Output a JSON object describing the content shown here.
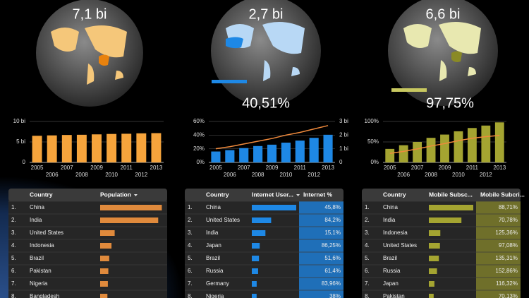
{
  "scorecards": [
    {
      "value": "7,1 bi"
    },
    {
      "value": "2,7 bi",
      "percent": "40,51%"
    },
    {
      "value": "6,6 bi",
      "percent": "97,75%"
    }
  ],
  "chart_data": [
    {
      "type": "bar",
      "categories": [
        "2005",
        "2006",
        "2007",
        "2008",
        "2009",
        "2010",
        "2011",
        "2012",
        "2013"
      ],
      "series": [
        {
          "kind": "bar",
          "color": "#f6a43c",
          "values": [
            6.5,
            6.6,
            6.7,
            6.75,
            6.85,
            6.95,
            7.0,
            7.1,
            7.15
          ]
        }
      ],
      "ylim": [
        0,
        10
      ],
      "yticks": [
        0,
        {
          "value": 5,
          "label": "5 bi"
        },
        {
          "value": 10,
          "label": "10 bi"
        }
      ],
      "grid": true
    },
    {
      "type": "bar",
      "categories": [
        "2005",
        "2006",
        "2007",
        "2008",
        "2009",
        "2010",
        "2011",
        "2012",
        "2013"
      ],
      "series": [
        {
          "kind": "bar",
          "color": "#1e88e5",
          "values": [
            16,
            18,
            21,
            24,
            26,
            29,
            32,
            36,
            40.51
          ]
        },
        {
          "kind": "line",
          "axis": "y2",
          "color": "#f08a3c",
          "values": [
            1.0,
            1.15,
            1.35,
            1.55,
            1.75,
            2.0,
            2.2,
            2.45,
            2.7
          ]
        }
      ],
      "ylim": [
        0,
        60
      ],
      "yticks": [
        {
          "value": 0,
          "label": "0%"
        },
        {
          "value": 20,
          "label": "20%"
        },
        {
          "value": 40,
          "label": "40%"
        },
        {
          "value": 60,
          "label": "60%"
        }
      ],
      "y2lim": [
        0,
        3
      ],
      "y2ticks": [
        0,
        {
          "value": 1,
          "label": "1 bi"
        },
        {
          "value": 2,
          "label": "2 bi"
        },
        {
          "value": 3,
          "label": "3 bi"
        }
      ],
      "grid": true
    },
    {
      "type": "bar",
      "categories": [
        "2005",
        "2006",
        "2007",
        "2008",
        "2009",
        "2010",
        "2011",
        "2012",
        "2013"
      ],
      "series": [
        {
          "kind": "bar",
          "color": "#a4a431",
          "values": [
            33,
            42,
            50,
            60,
            68,
            76,
            84,
            90,
            97.75
          ]
        },
        {
          "kind": "line",
          "axis": "y2",
          "color": "#f08a3c",
          "values": [
            2.2,
            2.7,
            3.3,
            4.0,
            4.6,
            5.3,
            5.9,
            6.3,
            6.6
          ]
        }
      ],
      "ylim": [
        0,
        100
      ],
      "yticks": [
        {
          "value": 0,
          "label": "0%"
        },
        {
          "value": 50,
          "label": "50%"
        },
        {
          "value": 100,
          "label": "100%"
        }
      ],
      "y2lim": [
        0,
        10
      ],
      "grid": true
    }
  ],
  "tables": [
    {
      "columns": [
        "Country",
        "Population"
      ],
      "sorted_column": 1,
      "bar_color": "#e08a3c",
      "bar_lim": [
        0,
        1.4
      ],
      "rows": [
        {
          "rank": "1.",
          "country": "China",
          "bar": 1.36
        },
        {
          "rank": "2.",
          "country": "India",
          "bar": 1.28
        },
        {
          "rank": "3.",
          "country": "United States",
          "bar": 0.32
        },
        {
          "rank": "4.",
          "country": "Indonesia",
          "bar": 0.25
        },
        {
          "rank": "5.",
          "country": "Brazil",
          "bar": 0.2
        },
        {
          "rank": "6.",
          "country": "Pakistan",
          "bar": 0.18
        },
        {
          "rank": "7.",
          "country": "Nigeria",
          "bar": 0.17
        },
        {
          "rank": "8.",
          "country": "Bangladesh",
          "bar": 0.16
        }
      ]
    },
    {
      "columns": [
        "Country",
        "Internet User...",
        "Internet %"
      ],
      "sorted_column": 1,
      "bar_color": "#1e88e5",
      "pct_color": "#1f6fb8",
      "bar_lim": [
        0,
        0.62
      ],
      "rows": [
        {
          "rank": "1.",
          "country": "China",
          "bar": 0.62,
          "percent": "45,8%"
        },
        {
          "rank": "2.",
          "country": "United States",
          "bar": 0.27,
          "percent": "84,2%"
        },
        {
          "rank": "3.",
          "country": "India",
          "bar": 0.19,
          "percent": "15,1%"
        },
        {
          "rank": "4.",
          "country": "Japan",
          "bar": 0.11,
          "percent": "86,25%"
        },
        {
          "rank": "5.",
          "country": "Brazil",
          "bar": 0.1,
          "percent": "51,6%"
        },
        {
          "rank": "6.",
          "country": "Russia",
          "bar": 0.088,
          "percent": "61,4%"
        },
        {
          "rank": "7.",
          "country": "Germany",
          "bar": 0.068,
          "percent": "83,96%"
        },
        {
          "rank": "8.",
          "country": "Nigeria",
          "bar": 0.067,
          "percent": "38%"
        }
      ]
    },
    {
      "columns": [
        "Country",
        "Mobile Subsc...",
        "Mobile Subcri..."
      ],
      "bar_color": "#a4a431",
      "pct_color": "#6f6f2a",
      "bar_lim": [
        0,
        1.2
      ],
      "rows": [
        {
          "rank": "1.",
          "country": "China",
          "bar": 1.2,
          "percent": "88,71%"
        },
        {
          "rank": "2.",
          "country": "India",
          "bar": 0.88,
          "percent": "70,78%"
        },
        {
          "rank": "3.",
          "country": "Indonesia",
          "bar": 0.31,
          "percent": "125,36%"
        },
        {
          "rank": "4.",
          "country": "United States",
          "bar": 0.3,
          "percent": "97,08%"
        },
        {
          "rank": "5.",
          "country": "Brazil",
          "bar": 0.27,
          "percent": "135,31%"
        },
        {
          "rank": "6.",
          "country": "Russia",
          "bar": 0.22,
          "percent": "152,86%"
        },
        {
          "rank": "7.",
          "country": "Japan",
          "bar": 0.15,
          "percent": "116,32%"
        },
        {
          "rank": "8.",
          "country": "Pakistan",
          "bar": 0.13,
          "percent": "70,13%"
        }
      ]
    }
  ]
}
